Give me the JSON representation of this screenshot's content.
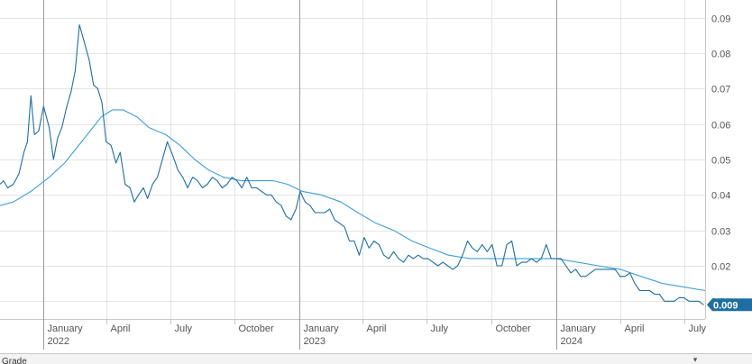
{
  "chart_data": {
    "type": "line",
    "last_value": 0.009,
    "ylim": [
      0.005,
      0.095
    ],
    "xlim": [
      "2021-11-01",
      "2024-07-31"
    ],
    "y_ticks": [
      0.01,
      0.02,
      0.03,
      0.04,
      0.05,
      0.06,
      0.07,
      0.08,
      0.09
    ],
    "y_tick_labels": [
      "0.01",
      "0.02",
      "0.03",
      "0.04",
      "0.05",
      "0.06",
      "0.07",
      "0.08",
      "0.09"
    ],
    "x_ticks": [
      {
        "date": "2022-01-01",
        "label": "January",
        "year": "2022",
        "major": true
      },
      {
        "date": "2022-04-01",
        "label": "April",
        "year": "",
        "major": false
      },
      {
        "date": "2022-07-01",
        "label": "July",
        "year": "",
        "major": false
      },
      {
        "date": "2022-10-01",
        "label": "October",
        "year": "",
        "major": false
      },
      {
        "date": "2023-01-01",
        "label": "January",
        "year": "2023",
        "major": true
      },
      {
        "date": "2023-04-01",
        "label": "April",
        "year": "",
        "major": false
      },
      {
        "date": "2023-07-01",
        "label": "July",
        "year": "",
        "major": false
      },
      {
        "date": "2023-10-01",
        "label": "October",
        "year": "",
        "major": false
      },
      {
        "date": "2024-01-01",
        "label": "January",
        "year": "2024",
        "major": true
      },
      {
        "date": "2024-04-01",
        "label": "April",
        "year": "",
        "major": false
      },
      {
        "date": "2024-07-01",
        "label": "July",
        "year": "",
        "major": false
      }
    ],
    "grid": true,
    "y_axis_position": "right",
    "series": [
      {
        "color": "#1e6fa0",
        "points": [
          [
            "2021-11-01",
            0.043
          ],
          [
            "2021-11-06",
            0.044
          ],
          [
            "2021-11-12",
            0.042
          ],
          [
            "2021-11-20",
            0.043
          ],
          [
            "2021-11-28",
            0.046
          ],
          [
            "2021-12-05",
            0.052
          ],
          [
            "2021-12-10",
            0.055
          ],
          [
            "2021-12-15",
            0.068
          ],
          [
            "2021-12-20",
            0.057
          ],
          [
            "2021-12-26",
            0.058
          ],
          [
            "2022-01-02",
            0.065
          ],
          [
            "2022-01-10",
            0.059
          ],
          [
            "2022-01-16",
            0.05
          ],
          [
            "2022-01-22",
            0.056
          ],
          [
            "2022-01-28",
            0.059
          ],
          [
            "2022-02-04",
            0.065
          ],
          [
            "2022-02-10",
            0.069
          ],
          [
            "2022-02-16",
            0.075
          ],
          [
            "2022-02-22",
            0.088
          ],
          [
            "2022-03-01",
            0.083
          ],
          [
            "2022-03-08",
            0.078
          ],
          [
            "2022-03-14",
            0.071
          ],
          [
            "2022-03-20",
            0.07
          ],
          [
            "2022-03-26",
            0.066
          ],
          [
            "2022-04-01",
            0.055
          ],
          [
            "2022-04-08",
            0.054
          ],
          [
            "2022-04-15",
            0.049
          ],
          [
            "2022-04-21",
            0.052
          ],
          [
            "2022-04-28",
            0.043
          ],
          [
            "2022-05-05",
            0.042
          ],
          [
            "2022-05-11",
            0.038
          ],
          [
            "2022-05-17",
            0.04
          ],
          [
            "2022-05-24",
            0.042
          ],
          [
            "2022-05-30",
            0.039
          ],
          [
            "2022-06-06",
            0.043
          ],
          [
            "2022-06-13",
            0.045
          ],
          [
            "2022-06-20",
            0.05
          ],
          [
            "2022-06-27",
            0.055
          ],
          [
            "2022-07-05",
            0.051
          ],
          [
            "2022-07-12",
            0.047
          ],
          [
            "2022-07-19",
            0.045
          ],
          [
            "2022-07-26",
            0.042
          ],
          [
            "2022-08-02",
            0.045
          ],
          [
            "2022-08-09",
            0.044
          ],
          [
            "2022-08-16",
            0.042
          ],
          [
            "2022-08-23",
            0.043
          ],
          [
            "2022-08-30",
            0.045
          ],
          [
            "2022-09-06",
            0.044
          ],
          [
            "2022-09-13",
            0.042
          ],
          [
            "2022-09-20",
            0.043
          ],
          [
            "2022-09-27",
            0.045
          ],
          [
            "2022-10-04",
            0.044
          ],
          [
            "2022-10-11",
            0.042
          ],
          [
            "2022-10-18",
            0.045
          ],
          [
            "2022-10-25",
            0.042
          ],
          [
            "2022-11-01",
            0.042
          ],
          [
            "2022-11-08",
            0.041
          ],
          [
            "2022-11-15",
            0.04
          ],
          [
            "2022-11-22",
            0.04
          ],
          [
            "2022-11-29",
            0.038
          ],
          [
            "2022-12-06",
            0.037
          ],
          [
            "2022-12-13",
            0.034
          ],
          [
            "2022-12-20",
            0.033
          ],
          [
            "2022-12-27",
            0.036
          ],
          [
            "2023-01-02",
            0.041
          ],
          [
            "2023-01-09",
            0.038
          ],
          [
            "2023-01-16",
            0.037
          ],
          [
            "2023-01-23",
            0.035
          ],
          [
            "2023-01-30",
            0.035
          ],
          [
            "2023-02-06",
            0.035
          ],
          [
            "2023-02-13",
            0.036
          ],
          [
            "2023-02-20",
            0.033
          ],
          [
            "2023-02-27",
            0.032
          ],
          [
            "2023-03-06",
            0.031
          ],
          [
            "2023-03-13",
            0.027
          ],
          [
            "2023-03-20",
            0.027
          ],
          [
            "2023-03-27",
            0.023
          ],
          [
            "2023-04-03",
            0.028
          ],
          [
            "2023-04-10",
            0.025
          ],
          [
            "2023-04-17",
            0.027
          ],
          [
            "2023-04-24",
            0.026
          ],
          [
            "2023-05-01",
            0.023
          ],
          [
            "2023-05-08",
            0.022
          ],
          [
            "2023-05-15",
            0.024
          ],
          [
            "2023-05-22",
            0.022
          ],
          [
            "2023-05-29",
            0.021
          ],
          [
            "2023-06-05",
            0.023
          ],
          [
            "2023-06-12",
            0.022
          ],
          [
            "2023-06-19",
            0.023
          ],
          [
            "2023-06-26",
            0.022
          ],
          [
            "2023-07-03",
            0.022
          ],
          [
            "2023-07-10",
            0.021
          ],
          [
            "2023-07-17",
            0.02
          ],
          [
            "2023-07-24",
            0.021
          ],
          [
            "2023-07-31",
            0.02
          ],
          [
            "2023-08-07",
            0.019
          ],
          [
            "2023-08-14",
            0.02
          ],
          [
            "2023-08-21",
            0.023
          ],
          [
            "2023-08-28",
            0.027
          ],
          [
            "2023-09-04",
            0.025
          ],
          [
            "2023-09-11",
            0.024
          ],
          [
            "2023-09-18",
            0.026
          ],
          [
            "2023-09-25",
            0.024
          ],
          [
            "2023-10-02",
            0.026
          ],
          [
            "2023-10-09",
            0.02
          ],
          [
            "2023-10-16",
            0.02
          ],
          [
            "2023-10-23",
            0.026
          ],
          [
            "2023-10-30",
            0.027
          ],
          [
            "2023-11-06",
            0.02
          ],
          [
            "2023-11-13",
            0.021
          ],
          [
            "2023-11-20",
            0.021
          ],
          [
            "2023-11-27",
            0.022
          ],
          [
            "2023-12-04",
            0.021
          ],
          [
            "2023-12-11",
            0.022
          ],
          [
            "2023-12-18",
            0.026
          ],
          [
            "2023-12-25",
            0.022
          ],
          [
            "2024-01-01",
            0.022
          ],
          [
            "2024-01-08",
            0.022
          ],
          [
            "2024-01-15",
            0.02
          ],
          [
            "2024-01-22",
            0.018
          ],
          [
            "2024-01-29",
            0.019
          ],
          [
            "2024-02-05",
            0.017
          ],
          [
            "2024-02-12",
            0.017
          ],
          [
            "2024-02-19",
            0.018
          ],
          [
            "2024-02-26",
            0.019
          ],
          [
            "2024-03-04",
            0.019
          ],
          [
            "2024-03-11",
            0.019
          ],
          [
            "2024-03-18",
            0.019
          ],
          [
            "2024-03-25",
            0.019
          ],
          [
            "2024-04-01",
            0.017
          ],
          [
            "2024-04-08",
            0.017
          ],
          [
            "2024-04-15",
            0.018
          ],
          [
            "2024-04-22",
            0.015
          ],
          [
            "2024-04-29",
            0.013
          ],
          [
            "2024-05-06",
            0.013
          ],
          [
            "2024-05-13",
            0.013
          ],
          [
            "2024-05-20",
            0.012
          ],
          [
            "2024-05-27",
            0.012
          ],
          [
            "2024-06-03",
            0.01
          ],
          [
            "2024-06-10",
            0.01
          ],
          [
            "2024-06-17",
            0.01
          ],
          [
            "2024-06-24",
            0.011
          ],
          [
            "2024-07-01",
            0.011
          ],
          [
            "2024-07-08",
            0.01
          ],
          [
            "2024-07-15",
            0.01
          ],
          [
            "2024-07-22",
            0.01
          ],
          [
            "2024-07-29",
            0.009
          ]
        ]
      },
      {
        "color": "#3f9fd6",
        "points": [
          [
            "2021-11-01",
            0.037
          ],
          [
            "2021-11-20",
            0.038
          ],
          [
            "2021-12-15",
            0.041
          ],
          [
            "2022-01-10",
            0.045
          ],
          [
            "2022-02-01",
            0.049
          ],
          [
            "2022-03-01",
            0.056
          ],
          [
            "2022-03-25",
            0.062
          ],
          [
            "2022-04-10",
            0.064
          ],
          [
            "2022-04-25",
            0.064
          ],
          [
            "2022-05-15",
            0.062
          ],
          [
            "2022-06-01",
            0.059
          ],
          [
            "2022-06-25",
            0.057
          ],
          [
            "2022-07-15",
            0.054
          ],
          [
            "2022-08-05",
            0.05
          ],
          [
            "2022-08-25",
            0.047
          ],
          [
            "2022-09-15",
            0.045
          ],
          [
            "2022-10-10",
            0.044
          ],
          [
            "2022-11-01",
            0.044
          ],
          [
            "2022-11-25",
            0.044
          ],
          [
            "2022-12-15",
            0.043
          ],
          [
            "2023-01-05",
            0.041
          ],
          [
            "2023-02-01",
            0.04
          ],
          [
            "2023-03-01",
            0.038
          ],
          [
            "2023-03-25",
            0.035
          ],
          [
            "2023-04-20",
            0.032
          ],
          [
            "2023-05-15",
            0.03
          ],
          [
            "2023-06-10",
            0.027
          ],
          [
            "2023-07-05",
            0.025
          ],
          [
            "2023-08-01",
            0.023
          ],
          [
            "2023-09-01",
            0.022
          ],
          [
            "2023-10-01",
            0.022
          ],
          [
            "2023-11-01",
            0.022
          ],
          [
            "2023-12-01",
            0.022
          ],
          [
            "2024-01-01",
            0.022
          ],
          [
            "2024-02-01",
            0.021
          ],
          [
            "2024-03-01",
            0.02
          ],
          [
            "2024-04-01",
            0.019
          ],
          [
            "2024-05-01",
            0.017
          ],
          [
            "2024-06-01",
            0.015
          ],
          [
            "2024-07-01",
            0.014
          ],
          [
            "2024-07-31",
            0.013
          ]
        ]
      }
    ]
  },
  "bottom_strip": {
    "label": "Grade",
    "toggle_icon": "caret-icon"
  }
}
